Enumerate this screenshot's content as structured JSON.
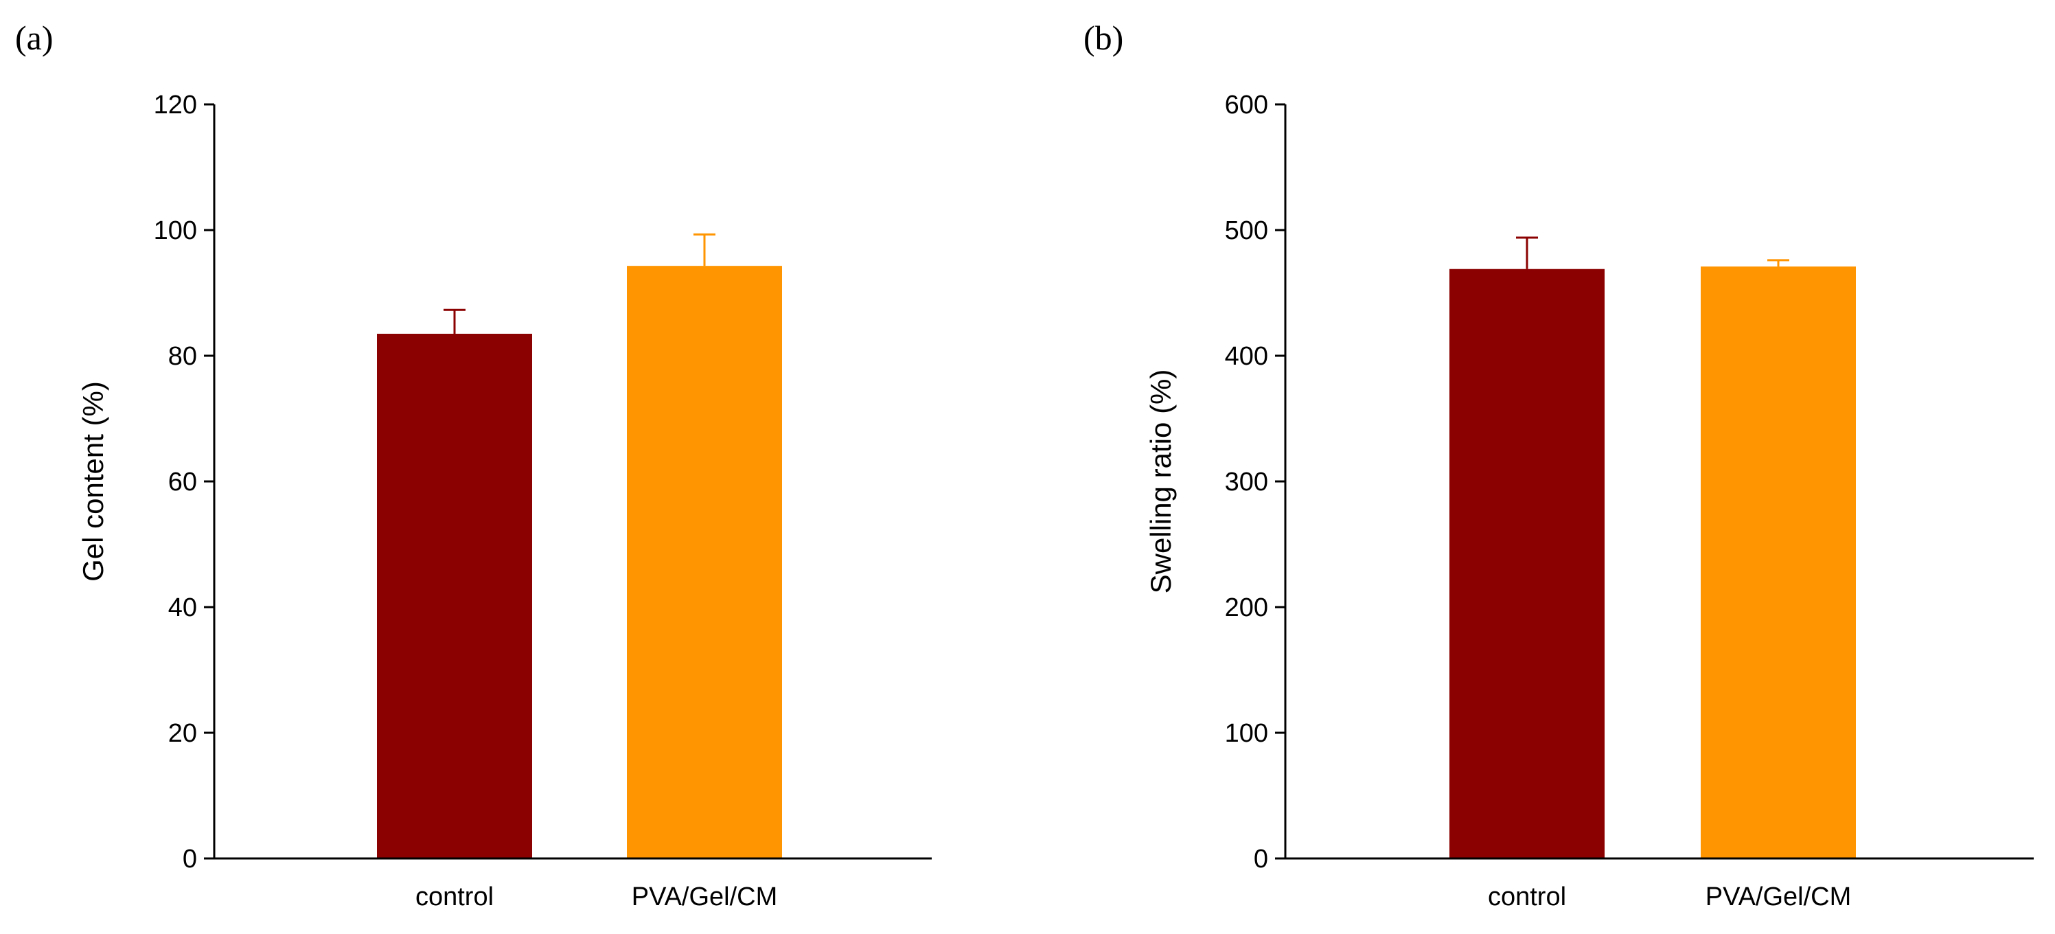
{
  "chart_data": [
    {
      "panel_label": "(a)",
      "type": "bar",
      "categories": [
        "control",
        "PVA/Gel/CM"
      ],
      "values": [
        83.5,
        94.3
      ],
      "errors": [
        3.8,
        5.0
      ],
      "colors": [
        "#8B0000",
        "#FF9500"
      ],
      "ylabel": "Gel content (%)",
      "xlabel": "",
      "ylim": [
        0,
        120
      ],
      "yticks": [
        0,
        20,
        40,
        60,
        80,
        100,
        120
      ],
      "ytick_labels": [
        "0",
        "20",
        "40",
        "60",
        "80",
        "100",
        "120"
      ],
      "grid": false,
      "legend": "none"
    },
    {
      "panel_label": "(b)",
      "type": "bar",
      "categories": [
        "control",
        "PVA/Gel/CM"
      ],
      "values": [
        469,
        471
      ],
      "errors": [
        25,
        5
      ],
      "colors": [
        "#8B0000",
        "#FF9500"
      ],
      "ylabel": "Swelling ratio (%)",
      "xlabel": "",
      "ylim": [
        0,
        600
      ],
      "yticks": [
        0,
        100,
        200,
        300,
        400,
        500,
        600
      ],
      "ytick_labels": [
        "0",
        "100",
        "200",
        "300",
        "400",
        "500",
        "600"
      ],
      "grid": false,
      "legend": "none"
    }
  ]
}
